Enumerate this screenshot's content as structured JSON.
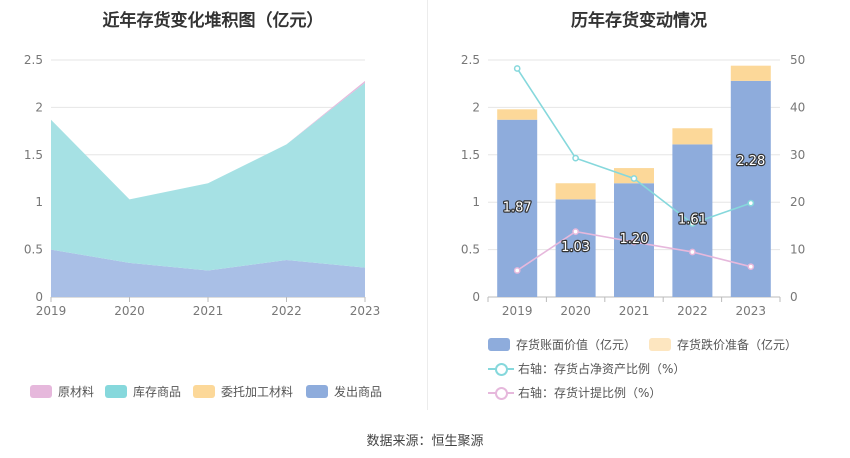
{
  "left": {
    "title": "近年存货变化堆积图（亿元）",
    "legend": [
      {
        "label": "原材料",
        "color": "#e6b8dc"
      },
      {
        "label": "库存商品",
        "color": "#86d8dc"
      },
      {
        "label": "委托加工材料",
        "color": "#fcd899"
      },
      {
        "label": "发出商品",
        "color": "#8eacdc"
      }
    ]
  },
  "right": {
    "title": "历年存货变动情况",
    "legend": [
      {
        "label": "存货账面价值（亿元）",
        "color": "#8eacdc"
      },
      {
        "label": "存货跌价准备（亿元）",
        "color": "#fde6c0"
      },
      {
        "label": "右轴：存货占净资产比例（%）",
        "color": "#86d8dc"
      },
      {
        "label": "右轴：存货计提比例（%）",
        "color": "#e6b8dc"
      }
    ]
  },
  "source": "数据来源：恒生聚源",
  "chart_data": [
    {
      "type": "area",
      "stacked": true,
      "title": "近年存货变化堆积图（亿元）",
      "x": [
        "2019",
        "2020",
        "2021",
        "2022",
        "2023"
      ],
      "ylim": [
        0,
        2.5
      ],
      "yticks": [
        "0",
        "0.5",
        "1",
        "1.5",
        "2",
        "2.5"
      ],
      "grid": true,
      "legend_position": "bottom",
      "series": [
        {
          "name": "发出商品",
          "values": [
            0.5,
            0.36,
            0.28,
            0.39,
            0.31
          ],
          "color": "#a9bfe6"
        },
        {
          "name": "委托加工材料",
          "values": [
            0,
            0,
            0,
            0,
            0
          ],
          "color": "#fcd899"
        },
        {
          "name": "库存商品",
          "values": [
            1.37,
            0.67,
            0.92,
            1.22,
            1.95
          ],
          "color": "#a6e1e4"
        },
        {
          "name": "原材料",
          "values": [
            0.0,
            0.0,
            0.0,
            0.0,
            0.02
          ],
          "color": "#e6b8dc"
        }
      ]
    },
    {
      "type": "bar",
      "stacked": true,
      "title": "历年存货变动情况",
      "categories": [
        "2019",
        "2020",
        "2021",
        "2022",
        "2023"
      ],
      "ylim": [
        0,
        2.5
      ],
      "yticks": [
        "0",
        "0.5",
        "1",
        "1.5",
        "2",
        "2.5"
      ],
      "y2lim": [
        0,
        50
      ],
      "y2ticks": [
        "0",
        "10",
        "20",
        "30",
        "40",
        "50"
      ],
      "grid": true,
      "legend_position": "bottom",
      "series": [
        {
          "name": "存货账面价值（亿元）",
          "values": [
            1.87,
            1.03,
            1.2,
            1.61,
            2.28
          ],
          "labels": [
            "1.87",
            "1.03",
            "1.20",
            "1.61",
            "2.28"
          ],
          "color": "#8eacdc"
        },
        {
          "name": "存货跌价准备（亿元）",
          "values": [
            0.11,
            0.17,
            0.16,
            0.17,
            0.16
          ],
          "color": "#fcd899"
        },
        {
          "name": "右轴：存货占净资产比例（%）",
          "type": "line",
          "axis": "right",
          "values": [
            48.2,
            29.3,
            25.0,
            15.5,
            19.8
          ],
          "color": "#86d8dc"
        },
        {
          "name": "右轴：存货计提比例（%）",
          "type": "line",
          "axis": "right",
          "values": [
            5.6,
            13.8,
            11.6,
            9.5,
            6.4
          ],
          "color": "#e6b8dc"
        }
      ]
    }
  ]
}
